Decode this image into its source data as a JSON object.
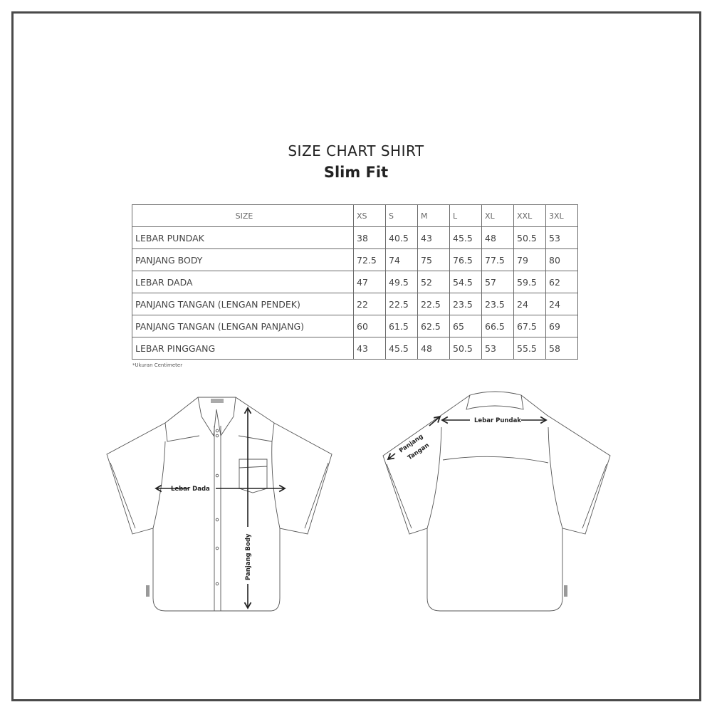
{
  "title": "SIZE CHART SHIRT",
  "subtitle": "Slim Fit",
  "table": {
    "header": [
      "SIZE",
      "XS",
      "S",
      "M",
      "L",
      "XL",
      "XXL",
      "3XL"
    ],
    "rows": [
      {
        "label": "LEBAR PUNDAK",
        "values": [
          "38",
          "40.5",
          "43",
          "45.5",
          "48",
          "50.5",
          "53"
        ]
      },
      {
        "label": "PANJANG BODY",
        "values": [
          "72.5",
          "74",
          "75",
          "76.5",
          "77.5",
          "79",
          "80"
        ]
      },
      {
        "label": "LEBAR DADA",
        "values": [
          "47",
          "49.5",
          "52",
          "54.5",
          "57",
          "59.5",
          "62"
        ]
      },
      {
        "label": "PANJANG TANGAN (LENGAN PENDEK)",
        "values": [
          "22",
          "22.5",
          "22.5",
          "23.5",
          "23.5",
          "24",
          "24"
        ]
      },
      {
        "label": "PANJANG TANGAN (LENGAN PANJANG)",
        "values": [
          "60",
          "61.5",
          "62.5",
          "65",
          "66.5",
          "67.5",
          "69"
        ]
      },
      {
        "label": "LEBAR PINGGANG",
        "values": [
          "43",
          "45.5",
          "48",
          "50.5",
          "53",
          "55.5",
          "58"
        ]
      }
    ]
  },
  "note": "*Ukuran Centimeter",
  "diagram": {
    "front": {
      "chest_label": "Lebar Dada",
      "body_label": "Panjang Body"
    },
    "back": {
      "shoulder_label": "Lebar Pundak",
      "sleeve_label_1": "Panjang",
      "sleeve_label_2": "Tangan"
    }
  }
}
